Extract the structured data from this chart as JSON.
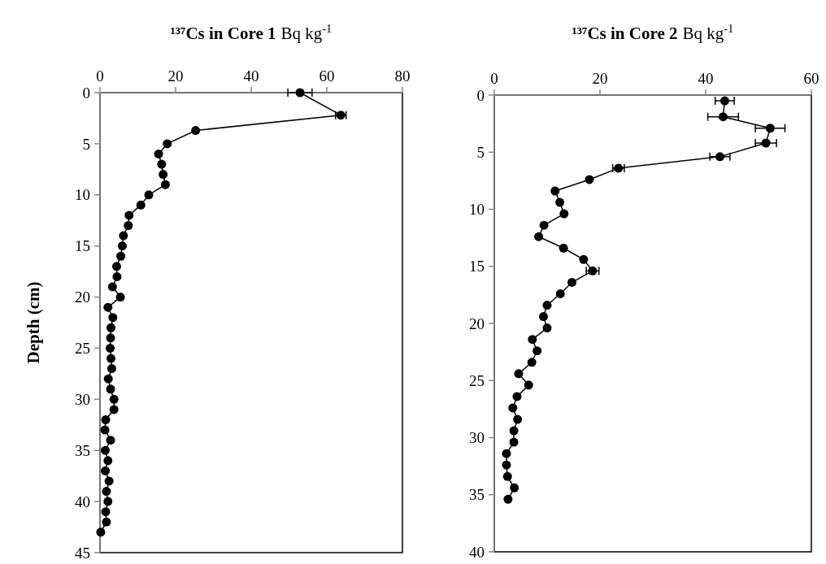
{
  "chart_data": [
    {
      "type": "line",
      "title": "¹³⁷Cs  in Core 1",
      "xlabel": "Bq kg$^{-1}$",
      "ylabel": "Depth (cm)",
      "xlim": [
        0,
        80
      ],
      "xticks": [
        0,
        20,
        40,
        60,
        80
      ],
      "ylim": [
        45,
        0
      ],
      "yticks": [
        0,
        5,
        10,
        15,
        20,
        25,
        30,
        35,
        40,
        45
      ],
      "marker": "circle",
      "series": [
        {
          "color": "#000000",
          "x": [
            52.9,
            63.7,
            25.3,
            17.8,
            15.5,
            16.3,
            16.7,
            17.3,
            12.9,
            10.8,
            7.7,
            7.5,
            6.2,
            5.9,
            5.5,
            4.4,
            4.5,
            3.3,
            5.4,
            2.1,
            3.4,
            2.9,
            2.8,
            2.7,
            2.9,
            3.1,
            2.2,
            2.8,
            3.7,
            3.7,
            1.5,
            1.3,
            2.8,
            1.4,
            2.1,
            1.4,
            2.4,
            1.7,
            2.1,
            1.5,
            1.7,
            0.2
          ],
          "values": [
            0,
            2.2,
            3.7,
            5,
            6,
            7,
            8,
            9,
            10,
            11,
            12,
            13,
            14,
            15,
            16,
            17,
            18,
            19,
            20,
            21,
            22,
            23,
            24,
            25,
            26,
            27,
            28,
            29,
            30,
            31,
            32,
            33,
            34,
            35,
            36,
            37,
            38,
            39,
            40,
            41,
            42,
            43
          ],
          "xerrors": [
            3.2,
            1.4,
            null,
            null,
            null,
            null,
            null,
            null,
            null,
            null,
            null,
            null,
            null,
            null,
            null,
            null,
            null,
            null,
            null,
            null,
            null,
            null,
            null,
            null,
            null,
            null,
            null,
            null,
            null,
            null,
            null,
            null,
            null,
            null,
            null,
            null,
            null,
            null,
            null,
            null,
            null,
            null
          ]
        }
      ]
    },
    {
      "type": "line",
      "title": "¹³⁷Cs in Core 2",
      "xlabel": "Bq kg$^{-1}$",
      "xlim": [
        0,
        60
      ],
      "xticks": [
        0,
        20,
        40,
        60
      ],
      "ylim": [
        40,
        0
      ],
      "yticks": [
        0,
        5,
        10,
        15,
        20,
        25,
        30,
        35,
        40
      ],
      "marker": "circle",
      "series": [
        {
          "color": "#000000",
          "x": [
            43.6,
            43.3,
            52.2,
            51.4,
            42.7,
            23.5,
            18.0,
            11.5,
            12.4,
            13.2,
            9.4,
            8.4,
            13.1,
            16.9,
            18.6,
            14.7,
            12.5,
            10.0,
            9.3,
            10.0,
            7.2,
            8.1,
            7.1,
            4.6,
            6.5,
            4.3,
            3.5,
            4.4,
            3.7,
            3.7,
            2.3,
            2.3,
            2.5,
            3.8,
            2.6
          ],
          "values": [
            0.5,
            1.9,
            2.9,
            4.2,
            5.4,
            6.4,
            7.4,
            8.4,
            9.4,
            10.4,
            11.4,
            12.4,
            13.4,
            14.4,
            15.4,
            16.4,
            17.4,
            18.4,
            19.4,
            20.4,
            21.4,
            22.4,
            23.4,
            24.4,
            25.4,
            26.4,
            27.4,
            28.4,
            29.4,
            30.4,
            31.4,
            32.4,
            33.4,
            34.4,
            35.4
          ],
          "xerrors": [
            1.8,
            2.9,
            2.8,
            2.0,
            1.9,
            1.1,
            null,
            null,
            null,
            null,
            null,
            null,
            null,
            null,
            1.2,
            null,
            null,
            null,
            null,
            null,
            null,
            null,
            null,
            null,
            null,
            null,
            null,
            null,
            null,
            null,
            null,
            null,
            null,
            null,
            null
          ]
        }
      ]
    }
  ]
}
